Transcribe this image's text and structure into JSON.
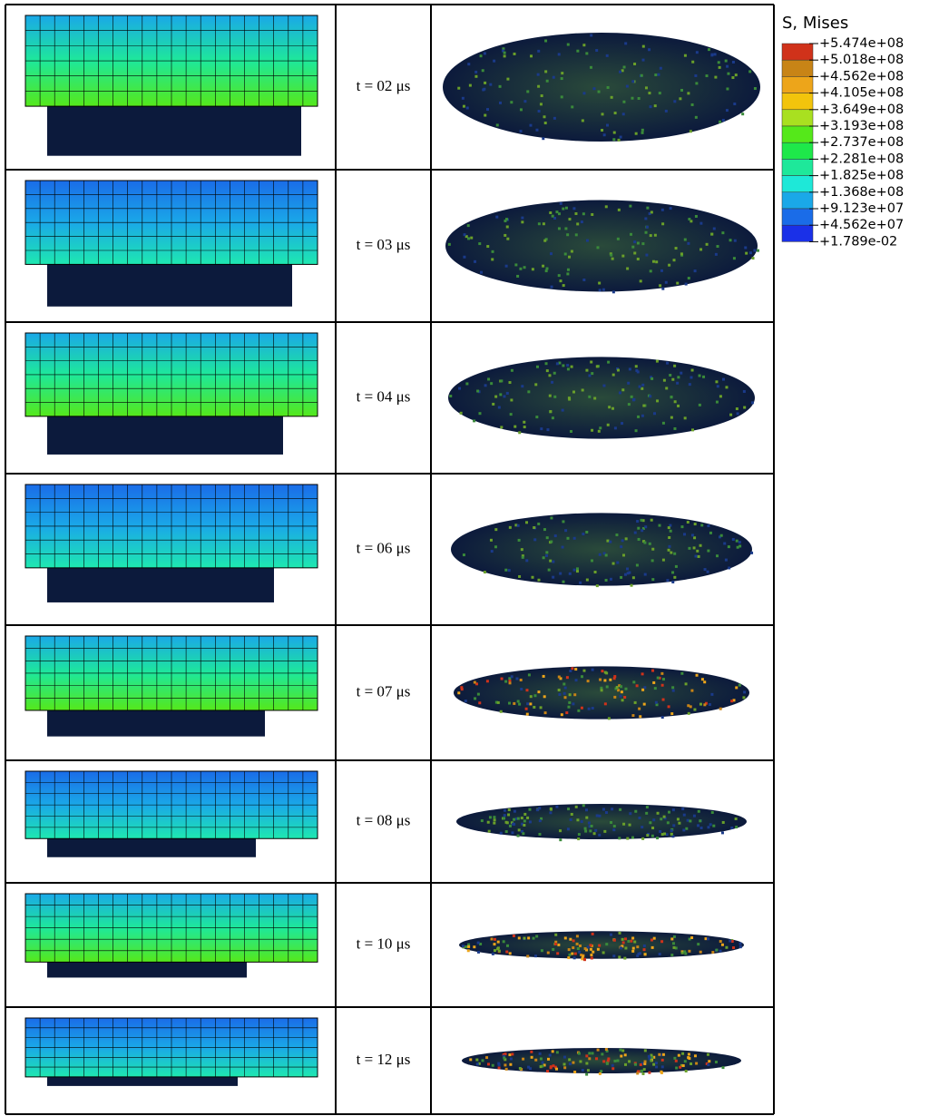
{
  "legend": {
    "title": "S, Mises",
    "labels": [
      "+5.474e+08",
      "+5.018e+08",
      "+4.562e+08",
      "+4.105e+08",
      "+3.649e+08",
      "+3.193e+08",
      "+2.737e+08",
      "+2.281e+08",
      "+1.825e+08",
      "+1.368e+08",
      "+9.123e+07",
      "+4.562e+07",
      "+1.789e-02"
    ]
  },
  "table": {
    "rows": [
      {
        "time": "t = 02 μs"
      },
      {
        "time": "t = 03 μs"
      },
      {
        "time": "t = 04 μs"
      },
      {
        "time": "t = 06 μs"
      },
      {
        "time": "t = 07 μs"
      },
      {
        "time": "t = 08 μs"
      },
      {
        "time": "t = 10 μs"
      },
      {
        "time": "t = 12 μs"
      }
    ]
  }
}
